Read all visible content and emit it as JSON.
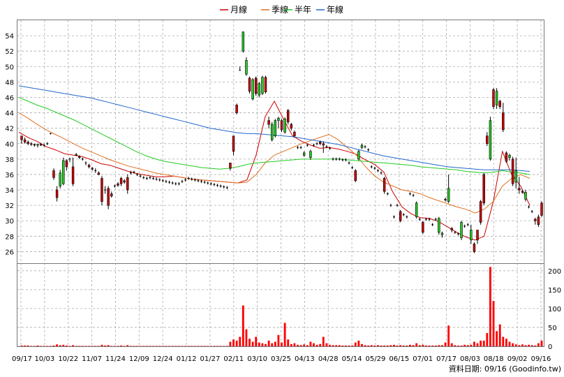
{
  "chart_data": {
    "type": "candlestick",
    "legend": [
      {
        "name": "月線",
        "color": "#cc0000"
      },
      {
        "name": "季線",
        "color": "#e07020"
      },
      {
        "name": "半年",
        "color": "#22cc22"
      },
      {
        "name": "年線",
        "color": "#2266cc"
      }
    ],
    "footer": "資料日期: 09/16 (Goodinfo.tw)",
    "x_tick_labels": [
      "09/17",
      "10/03",
      "10/22",
      "11/07",
      "11/24",
      "12/09",
      "12/24",
      "01/12",
      "01/27",
      "02/11",
      "03/10",
      "03/25",
      "04/13",
      "04/28",
      "05/14",
      "05/29",
      "06/15",
      "07/01",
      "07/17",
      "08/03",
      "08/18",
      "09/02",
      "09/16"
    ],
    "price_axis": {
      "ticks": [
        26,
        28,
        30,
        32,
        34,
        36,
        38,
        40,
        42,
        44,
        46,
        48,
        50,
        52,
        54
      ],
      "ylim": [
        24.5,
        56
      ]
    },
    "volume_axis": {
      "ticks": [
        0,
        50,
        100,
        150,
        200
      ],
      "ylim": [
        0,
        220
      ]
    },
    "colors": {
      "up": "#22cc22",
      "down": "#cc0000",
      "grid": "#aaaaaa",
      "volume": "#ff0000"
    },
    "candles": [
      [
        41,
        41,
        40,
        40.5
      ],
      [
        40.5,
        40.8,
        40,
        40.2
      ],
      [
        40.2,
        40.4,
        39.8,
        40
      ],
      [
        40,
        40.2,
        39.7,
        39.9
      ],
      [
        39.9,
        40,
        39.6,
        39.8
      ],
      [
        39.8,
        40,
        39.5,
        39.9
      ],
      [
        39.9,
        40.1,
        39.7,
        39.8
      ],
      [
        39.8,
        40,
        39.6,
        39.8
      ],
      [
        40,
        40.2,
        39.8,
        40
      ],
      [
        41.3,
        41.4,
        41.2,
        41.3
      ],
      [
        36.5,
        36.8,
        35.3,
        35.6
      ],
      [
        34,
        34.5,
        32.5,
        33
      ],
      [
        34.5,
        36.6,
        34.2,
        36.2
      ],
      [
        34.8,
        38.2,
        34.6,
        37.8
      ],
      [
        37.8,
        38,
        36.5,
        37
      ],
      [
        38,
        38.2,
        37.6,
        38
      ],
      [
        37,
        38.2,
        34.5,
        34.8
      ],
      [
        38.5,
        38.8,
        38.4,
        38.6
      ],
      [
        38.3,
        38.5,
        38,
        38.2
      ],
      [
        38,
        38.2,
        37.8,
        38
      ],
      [
        37.5,
        37.7,
        37.2,
        37.5
      ],
      [
        37.2,
        37.4,
        36.8,
        37
      ],
      [
        36.8,
        37,
        36.5,
        36.7
      ],
      [
        36.5,
        36.8,
        36.2,
        36.5
      ],
      [
        36.2,
        36.4,
        35.9,
        36
      ],
      [
        35.5,
        35.8,
        32,
        32.5
      ],
      [
        34,
        34.5,
        33.5,
        34
      ],
      [
        34.2,
        34.5,
        31.5,
        32
      ],
      [
        33.5,
        33.8,
        33,
        33.2
      ],
      [
        34.5,
        34.7,
        34.3,
        34.5
      ],
      [
        34.8,
        35,
        34.4,
        34.6
      ],
      [
        35.5,
        35.7,
        34.5,
        34.8
      ],
      [
        35.2,
        35.4,
        34.8,
        35
      ],
      [
        35.6,
        36,
        33.5,
        34
      ],
      [
        36.2,
        36.5,
        36,
        36.2
      ],
      [
        36.3,
        36.5,
        36.1,
        36.3
      ],
      [
        36,
        36.2,
        35.8,
        36
      ],
      [
        35.8,
        36,
        35.6,
        35.8
      ],
      [
        35.6,
        35.8,
        35.4,
        35.6
      ],
      [
        35.5,
        35.7,
        35.3,
        35.5
      ],
      [
        35.6,
        35.8,
        35.4,
        35.6
      ],
      [
        35.5,
        35.7,
        35.3,
        35.5
      ],
      [
        35.4,
        35.6,
        35.2,
        35.4
      ],
      [
        35.3,
        35.5,
        35.1,
        35.3
      ],
      [
        35.2,
        35.4,
        35,
        35.2
      ],
      [
        35.1,
        35.3,
        34.9,
        35.1
      ],
      [
        35,
        35.2,
        34.8,
        35
      ],
      [
        34.9,
        35.1,
        34.7,
        34.9
      ],
      [
        34.8,
        35,
        34.6,
        34.8
      ],
      [
        34.8,
        35,
        34.6,
        34.8
      ],
      [
        35.1,
        35.3,
        34.9,
        35.1
      ],
      [
        35.3,
        35.5,
        35.1,
        35.3
      ],
      [
        35.5,
        35.7,
        35.3,
        35.5
      ],
      [
        35.4,
        35.6,
        35.2,
        35.4
      ],
      [
        35.3,
        35.5,
        35.1,
        35.3
      ],
      [
        35.2,
        35.4,
        35,
        35.2
      ],
      [
        35.1,
        35.3,
        34.9,
        35.1
      ],
      [
        35,
        35.2,
        34.8,
        35
      ],
      [
        34.9,
        35.1,
        34.7,
        34.9
      ],
      [
        34.8,
        35,
        34.6,
        34.8
      ],
      [
        34.7,
        34.9,
        34.5,
        34.7
      ],
      [
        34.6,
        34.8,
        34.4,
        34.6
      ],
      [
        34.5,
        34.7,
        34.3,
        34.5
      ],
      [
        34.4,
        34.6,
        34.2,
        34.4
      ],
      [
        34.3,
        34.5,
        34.1,
        34.3
      ],
      [
        37.5,
        37.5,
        36.5,
        36.8
      ],
      [
        41,
        41,
        38.5,
        39
      ],
      [
        45,
        45.2,
        43.8,
        44
      ],
      [
        49.5,
        50,
        49.5,
        49.5
      ],
      [
        52,
        54.5,
        51.8,
        54.5
      ],
      [
        49,
        51.2,
        48.8,
        50.8
      ],
      [
        48.5,
        48.7,
        46.5,
        46.8
      ],
      [
        45.8,
        48.5,
        45.6,
        48.3
      ],
      [
        48.5,
        48.7,
        46.2,
        46.5
      ],
      [
        46.3,
        48,
        46,
        47.8
      ],
      [
        46.5,
        48.8,
        46.3,
        48.6
      ],
      [
        48.6,
        48.8,
        46.5,
        46.7
      ],
      [
        43,
        43.5,
        42,
        42.5
      ],
      [
        40.5,
        42.8,
        40.3,
        42.5
      ],
      [
        41,
        43.2,
        40.8,
        43
      ],
      [
        43,
        43.5,
        42,
        43.3
      ],
      [
        43,
        43.2,
        41.5,
        41.8
      ],
      [
        41.5,
        43.4,
        41.3,
        43.2
      ],
      [
        44.3,
        44.5,
        42.5,
        42.8
      ],
      [
        42.5,
        42.7,
        41.7,
        42
      ],
      [
        41.5,
        41.7,
        40.8,
        41
      ],
      [
        39.5,
        39.7,
        39.3,
        39.5
      ],
      [
        39.5,
        39.7,
        39.3,
        39.5
      ],
      [
        38.5,
        39,
        38.3,
        38.8
      ],
      [
        39.8,
        40,
        39.6,
        39.8
      ],
      [
        38.2,
        39.2,
        37.9,
        39
      ],
      [
        39.8,
        40,
        39.6,
        39.8
      ],
      [
        40,
        40.2,
        39.8,
        40
      ],
      [
        40.2,
        40.4,
        39.8,
        40
      ],
      [
        40,
        40.3,
        38.8,
        39.8
      ],
      [
        39.6,
        39.8,
        39.4,
        39.6
      ],
      [
        39.4,
        39.6,
        39.2,
        39.4
      ],
      [
        38,
        38.2,
        37.8,
        38
      ],
      [
        38,
        38.2,
        37.8,
        38
      ],
      [
        38,
        38.2,
        37.8,
        38
      ],
      [
        37.9,
        38.1,
        37.7,
        37.9
      ],
      [
        37.9,
        38.1,
        37.7,
        37.9
      ],
      [
        37.5,
        37.7,
        37.3,
        37.5
      ],
      [
        36.9,
        37.1,
        36.7,
        36.9
      ],
      [
        36.5,
        36.7,
        35,
        35.2
      ],
      [
        38,
        39.2,
        37.8,
        39
      ],
      [
        39.5,
        40,
        39.3,
        39.8
      ],
      [
        39.6,
        39.8,
        39.4,
        39.6
      ],
      [
        39.2,
        39.4,
        39,
        39.2
      ],
      [
        37,
        37.2,
        36.8,
        37
      ],
      [
        36.8,
        37,
        36.6,
        36.8
      ],
      [
        36.5,
        36.7,
        36.3,
        36.5
      ],
      [
        36.2,
        36.4,
        36,
        36.2
      ],
      [
        35.5,
        35.7,
        33.5,
        33.8
      ],
      [
        33.5,
        33.7,
        33.3,
        33.5
      ],
      [
        32,
        32.2,
        31.8,
        32
      ],
      [
        30.5,
        30.7,
        30.3,
        30.5
      ],
      [
        32,
        32.2,
        31.8,
        32
      ],
      [
        31.2,
        31.4,
        29.8,
        30
      ],
      [
        30.8,
        31,
        30.6,
        30.8
      ],
      [
        30.5,
        30.7,
        30.3,
        30.5
      ],
      [
        33.5,
        33.7,
        33.3,
        33.5
      ],
      [
        33.3,
        33.5,
        33.1,
        33.3
      ],
      [
        30.5,
        32.5,
        30.3,
        32.3
      ],
      [
        30.2,
        30.4,
        30,
        30.2
      ],
      [
        29.8,
        30,
        28.3,
        28.5
      ],
      [
        30.2,
        30.4,
        30,
        30.2
      ],
      [
        30.2,
        30.4,
        30,
        30.2
      ],
      [
        29.5,
        29.7,
        29.3,
        29.5
      ],
      [
        30.2,
        30.4,
        30,
        30.2
      ],
      [
        28.5,
        30.5,
        28.2,
        30.3
      ],
      [
        28.2,
        28.6,
        27.8,
        28.4
      ],
      [
        32.8,
        33,
        32.5,
        32.7
      ],
      [
        32.5,
        36,
        32.3,
        34.2
      ],
      [
        29,
        29.2,
        28.5,
        28.8
      ],
      [
        28.5,
        28.7,
        28.3,
        28.5
      ],
      [
        28.3,
        28.5,
        28.1,
        28.3
      ],
      [
        27.8,
        30,
        27.5,
        29.8
      ],
      [
        29.3,
        29.5,
        29.1,
        29.3
      ],
      [
        29.5,
        29.7,
        29.3,
        29.5
      ],
      [
        27.5,
        29.5,
        27,
        28.8
      ],
      [
        27,
        27.2,
        25.8,
        26
      ],
      [
        28.8,
        28.8,
        27,
        27.5
      ],
      [
        32.5,
        32.7,
        29.5,
        29.8
      ],
      [
        36,
        36.2,
        32,
        32.3
      ],
      [
        41,
        41.5,
        39.7,
        40
      ],
      [
        38,
        43.5,
        37.8,
        43
      ],
      [
        47,
        47.2,
        44.5,
        44.8
      ],
      [
        45,
        47.2,
        44.5,
        46.8
      ],
      [
        45.5,
        45.7,
        44.5,
        44.8
      ],
      [
        44,
        45.3,
        41.5,
        41.8
      ],
      [
        38.8,
        39,
        37.5,
        37.7
      ],
      [
        38.2,
        38.7,
        37.8,
        38.5
      ],
      [
        38,
        38.3,
        34.5,
        34.8
      ],
      [
        35,
        38.2,
        34.2,
        36.5
      ],
      [
        34.2,
        35.7,
        33.5,
        34
      ],
      [
        33.8,
        34,
        33.5,
        33.7
      ],
      [
        32.8,
        34,
        32.5,
        33.7
      ],
      [
        31.8,
        32,
        31.6,
        31.8
      ],
      [
        31.2,
        31.4,
        31,
        31.2
      ],
      [
        30.2,
        30.4,
        29.5,
        30
      ],
      [
        30.5,
        30.8,
        29.2,
        29.5
      ],
      [
        32.3,
        32.5,
        30.5,
        30.7
      ]
    ],
    "volume": [
      2,
      2,
      2,
      1,
      1,
      2,
      1,
      1,
      1,
      1,
      2,
      5,
      3,
      4,
      2,
      1,
      3,
      1,
      1,
      1,
      1,
      1,
      1,
      1,
      1,
      4,
      2,
      3,
      1,
      1,
      1,
      2,
      1,
      3,
      1,
      1,
      1,
      1,
      1,
      1,
      1,
      1,
      1,
      1,
      1,
      1,
      1,
      1,
      1,
      1,
      1,
      1,
      1,
      1,
      1,
      1,
      1,
      1,
      1,
      1,
      1,
      1,
      1,
      1,
      1,
      12,
      18,
      15,
      25,
      108,
      45,
      20,
      12,
      25,
      10,
      8,
      6,
      15,
      8,
      12,
      30,
      10,
      62,
      18,
      6,
      8,
      4,
      3,
      5,
      3,
      12,
      8,
      4,
      6,
      25,
      8,
      4,
      3,
      3,
      3,
      2,
      2,
      2,
      2,
      10,
      15,
      6,
      3,
      2,
      3,
      2,
      3,
      2,
      2,
      2,
      3,
      4,
      2,
      3,
      2,
      2,
      4,
      3,
      8,
      3,
      4,
      2,
      2,
      2,
      2,
      3,
      3,
      10,
      55,
      8,
      3,
      2,
      2,
      4,
      3,
      4,
      12,
      8,
      15,
      15,
      35,
      210,
      120,
      40,
      58,
      25,
      20,
      12,
      8,
      5,
      3,
      5,
      3,
      4,
      3,
      2,
      8,
      15
    ],
    "moving_averages": {
      "month": [
        41.5,
        40.8,
        40.3,
        39.6,
        39.2,
        38.7,
        38.5,
        38.3,
        37.9,
        37.4,
        37.2,
        36.8,
        36.4,
        36.1,
        35.9,
        35.7,
        35.7,
        35.8,
        35.6,
        35.4,
        35.3,
        35.2,
        35.1,
        35.0,
        34.9,
        35.3,
        38.5,
        43.5,
        45.5,
        43.2,
        41.0,
        40.3,
        39.8,
        39.4,
        39.5,
        39.3,
        39.0,
        38.6,
        37.9,
        37.3,
        36.3,
        33.7,
        31.8,
        30.9,
        30.4,
        30.3,
        29.9,
        29.2,
        28.5,
        27.9,
        27.5,
        28.0,
        32.5,
        39.0,
        36.0,
        34.5,
        32.0
      ],
      "quarter": [
        44.0,
        43.3,
        42.5,
        41.8,
        41.2,
        40.6,
        40.0,
        39.4,
        38.9,
        38.4,
        37.9,
        37.5,
        37.1,
        36.8,
        36.5,
        36.2,
        36.0,
        35.8,
        35.6,
        35.4,
        35.3,
        35.2,
        35.1,
        35.0,
        34.9,
        35.0,
        36.0,
        37.5,
        38.5,
        39.0,
        39.5,
        40.0,
        40.4,
        40.8,
        41.2,
        40.5,
        39.5,
        38.5,
        37.0,
        35.8,
        35.0,
        34.5,
        34.0,
        33.8,
        33.5,
        33.0,
        32.6,
        32.2,
        31.8,
        31.5,
        31.0,
        31.5,
        32.5,
        34.5,
        35.5,
        36.0,
        35.5
      ],
      "half": [
        46.0,
        45.5,
        45.0,
        44.6,
        44.1,
        43.6,
        43.1,
        42.5,
        41.9,
        41.3,
        40.7,
        40.1,
        39.5,
        38.9,
        38.4,
        38.0,
        37.7,
        37.5,
        37.3,
        37.1,
        36.9,
        36.8,
        36.7,
        36.8,
        37.0,
        37.3,
        37.5,
        37.6,
        37.7,
        37.8,
        37.9,
        38.0,
        38.0,
        38.0,
        38.0,
        38.0,
        37.9,
        37.8,
        37.7,
        37.6,
        37.5,
        37.4,
        37.3,
        37.2,
        37.0,
        36.9,
        36.8,
        36.7,
        36.6,
        36.4,
        36.3,
        36.2,
        36.3,
        36.5,
        36.3,
        36.2,
        36.0
      ],
      "year": [
        47.5,
        47.3,
        47.1,
        46.9,
        46.7,
        46.5,
        46.3,
        46.1,
        45.9,
        45.6,
        45.3,
        45.0,
        44.7,
        44.4,
        44.1,
        43.8,
        43.5,
        43.2,
        42.9,
        42.6,
        42.3,
        42.0,
        41.8,
        41.6,
        41.4,
        41.3,
        41.3,
        41.2,
        41.1,
        41.0,
        40.9,
        40.7,
        40.5,
        40.3,
        40.1,
        39.9,
        39.6,
        39.3,
        39.0,
        38.7,
        38.4,
        38.2,
        38.0,
        37.8,
        37.6,
        37.4,
        37.2,
        37.0,
        36.9,
        36.8,
        36.7,
        36.6,
        36.6,
        36.6,
        36.6,
        36.5,
        36.4
      ]
    }
  }
}
